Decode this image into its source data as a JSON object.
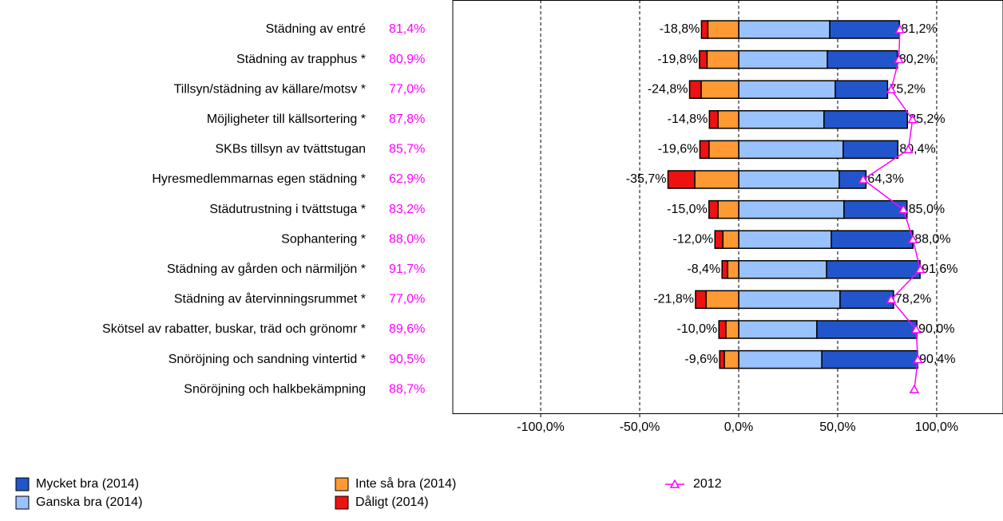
{
  "chart_data": {
    "type": "bar",
    "orientation": "horizontal",
    "stacked": "diverging",
    "categories": [
      "Städning av entré",
      "Städning av trapphus *",
      "Tillsyn/städning av källare/motsv *",
      "Möjligheter till källsortering *",
      "SKBs tillsyn av tvättstugan",
      "Hyresmedlemmarnas egen städning *",
      "Städutrustning i tvättstuga *",
      "Sophantering *",
      "Städning av gården och närmiljön *",
      "Städning av återvinningsrummet *",
      "Skötsel av rabatter, buskar, träd och grönomr *",
      "Snöröjning och sandning vintertid *",
      "Snöröjning och halkbekämpning"
    ],
    "series": [
      {
        "name": "Ganska bra (2014)",
        "color": "#99c2ff",
        "values": [
          46,
          44.8,
          48.8,
          43.1,
          52.8,
          50.8,
          53.2,
          46.8,
          44.4,
          51.2,
          39.5,
          42,
          null
        ]
      },
      {
        "name": "Mycket bra (2014)",
        "color": "#2255cc",
        "values": [
          35.2,
          35.4,
          26.4,
          42.1,
          27.6,
          13.5,
          31.8,
          41.2,
          47.2,
          27,
          50.5,
          48.4,
          null
        ]
      },
      {
        "name": "Inte så bra (2014)",
        "color": "#ff9933",
        "values": [
          -15.6,
          -16,
          -19,
          -10.5,
          -15,
          -22.2,
          -10.5,
          -8,
          -5.6,
          -16.5,
          -6.5,
          -7.3,
          null
        ]
      },
      {
        "name": "Dåligt (2014)",
        "color": "#ee1111",
        "values": [
          -3.2,
          -3.8,
          -5.8,
          -4.3,
          -4.6,
          -13.5,
          -4.5,
          -4,
          -2.8,
          -5.3,
          -3.5,
          -2.3,
          null
        ]
      },
      {
        "name": "2012",
        "type": "line",
        "color": "#ff00ff",
        "values": [
          81.4,
          80.9,
          77.0,
          87.8,
          85.7,
          62.9,
          83.2,
          88.0,
          91.7,
          77.0,
          89.6,
          90.5,
          88.7
        ],
        "value_labels": [
          "81,4%",
          "80,9%",
          "77,0%",
          "87,8%",
          "85,7%",
          "62,9%",
          "83,2%",
          "88,0%",
          "91,7%",
          "77,0%",
          "89,6%",
          "90,5%",
          "88,7%"
        ]
      }
    ],
    "positive_totals": {
      "values": [
        81.2,
        80.2,
        75.2,
        85.2,
        80.4,
        64.3,
        85.0,
        88.0,
        91.6,
        78.2,
        90.0,
        90.4,
        null
      ],
      "value_labels": [
        "81,2%",
        "80,2%",
        "75,2%",
        "85,2%",
        "80,4%",
        "64,3%",
        "85,0%",
        "88,0%",
        "91,6%",
        "78,2%",
        "90,0%",
        "90,4%",
        null
      ]
    },
    "negative_totals": {
      "values": [
        -18.8,
        -19.8,
        -24.8,
        -14.8,
        -19.6,
        -35.7,
        -15.0,
        -12.0,
        -8.4,
        -21.8,
        -10.0,
        -9.6,
        null
      ],
      "value_labels": [
        "-18,8%",
        "-19,8%",
        "-24,8%",
        "-14,8%",
        "-19,6%",
        "-35,7%",
        "-15,0%",
        "-12,0%",
        "-8,4%",
        "-21,8%",
        "-10,0%",
        "-9,6%",
        null
      ]
    },
    "xlim": [
      -144.4,
      133.5
    ],
    "xticks": [
      {
        "value": -100,
        "label": "-100,0%"
      },
      {
        "value": -50,
        "label": "-50,0%"
      },
      {
        "value": 0,
        "label": "0,0%"
      },
      {
        "value": 50,
        "label": "50,0%"
      },
      {
        "value": 100,
        "label": "100,0%"
      }
    ],
    "grid": true,
    "legend": "bottom"
  }
}
